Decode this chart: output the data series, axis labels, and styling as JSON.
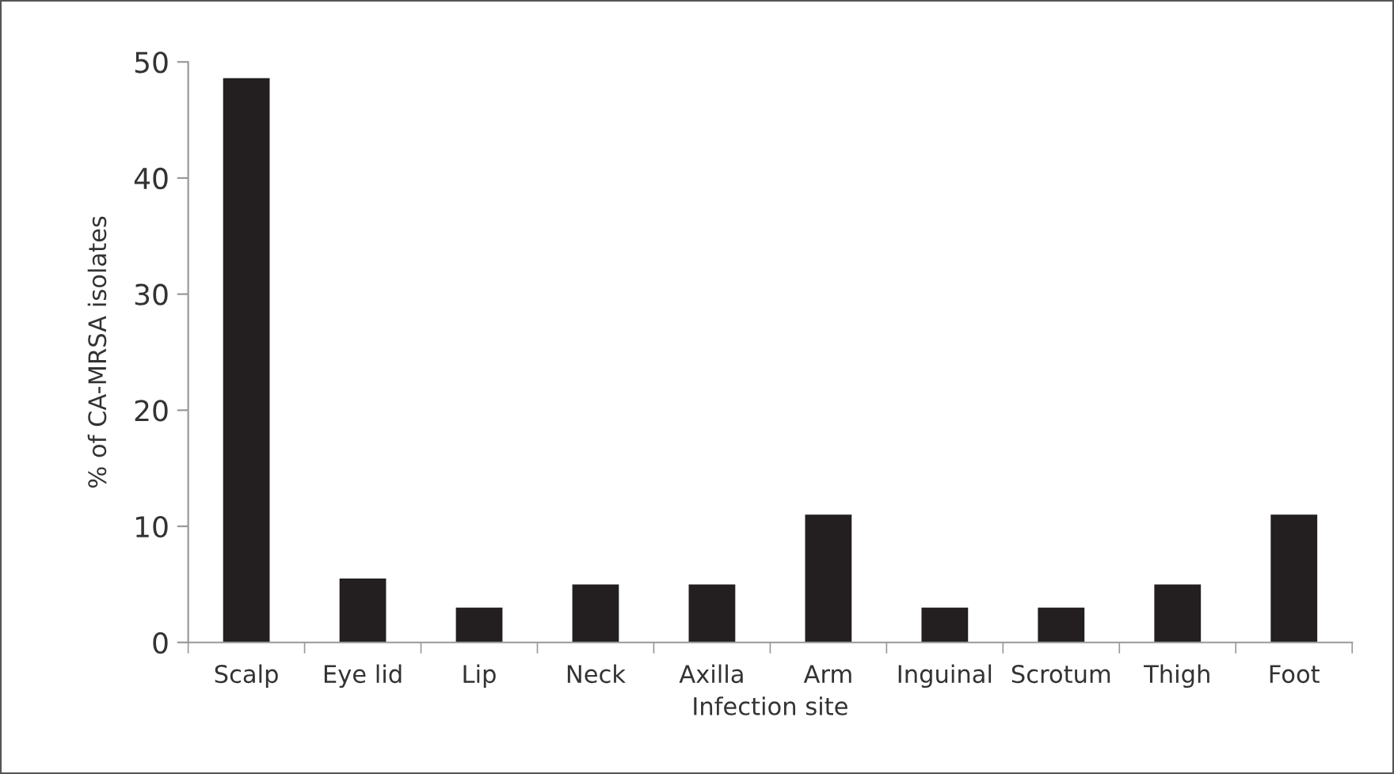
{
  "chart_data": {
    "type": "bar",
    "xlabel": "Infection site",
    "ylabel": "% of CA-MRSA isolates",
    "categories": [
      "Scalp",
      "Eye lid",
      "Lip",
      "Neck",
      "Axilla",
      "Arm",
      "Inguinal",
      "Scrotum",
      "Thigh",
      "Foot"
    ],
    "values": [
      48.6,
      5.5,
      3,
      5,
      5,
      11,
      3,
      3,
      5,
      11
    ],
    "color": "#231f20",
    "ylim": [
      0,
      50
    ],
    "yticks": [
      0,
      10,
      20,
      30,
      40,
      50
    ],
    "grid": false,
    "legend": false
  }
}
